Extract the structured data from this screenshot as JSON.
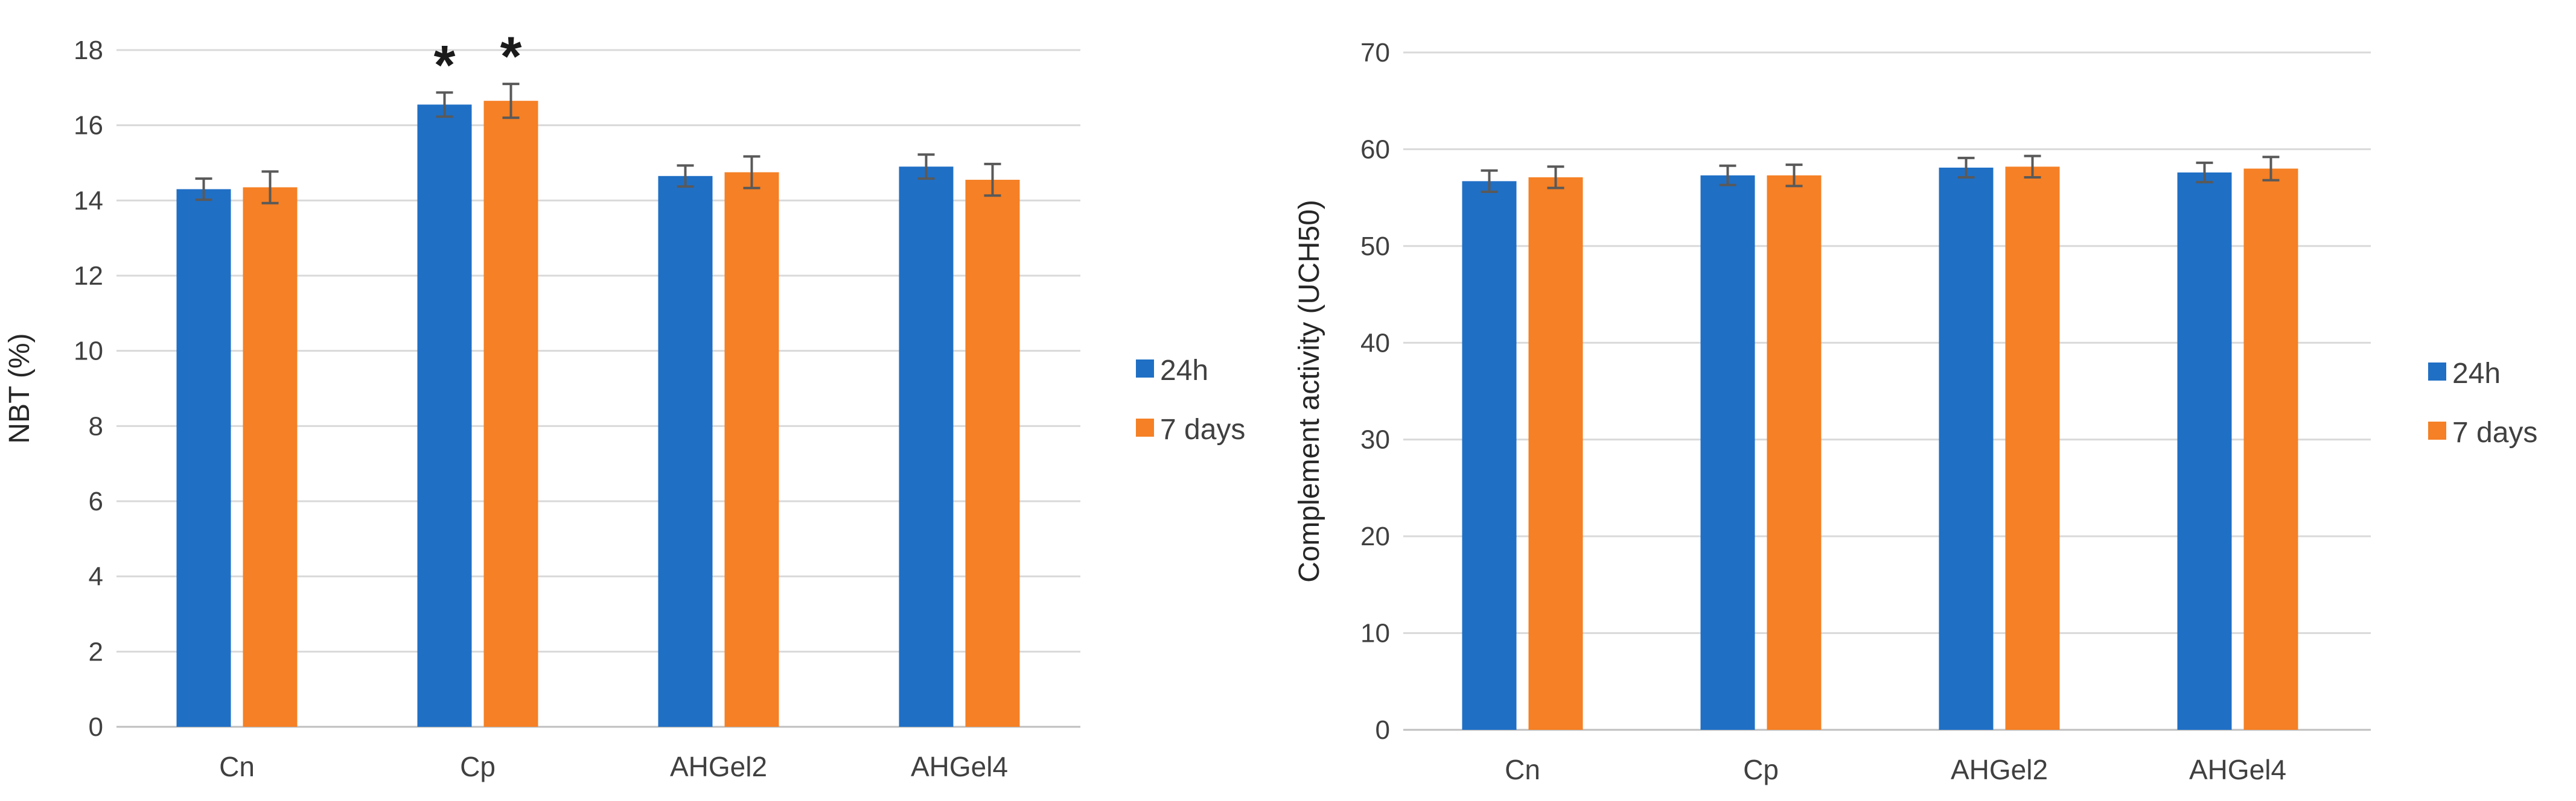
{
  "chart_data": [
    {
      "type": "bar",
      "title": "",
      "xlabel": "",
      "ylabel": "NBT (%)",
      "ylim": [
        0,
        18
      ],
      "yticks": [
        0,
        2,
        4,
        6,
        8,
        10,
        12,
        14,
        16,
        18
      ],
      "categories": [
        "Cn",
        "Cp",
        "AHGel2",
        "AHGel4"
      ],
      "series": [
        {
          "name": "24h",
          "color": "#1f6fc5",
          "values": [
            14.3,
            16.55,
            14.65,
            14.9
          ],
          "errors": [
            0.28,
            0.32,
            0.28,
            0.32
          ]
        },
        {
          "name": "7 days",
          "color": "#f58025",
          "values": [
            14.35,
            16.65,
            14.75,
            14.55
          ],
          "errors": [
            0.42,
            0.45,
            0.42,
            0.42
          ]
        }
      ],
      "annotations": [
        {
          "category": "Cp",
          "series": "24h",
          "text": "*"
        },
        {
          "category": "Cp",
          "series": "7 days",
          "text": "*"
        }
      ],
      "legend": "right",
      "grid": true
    },
    {
      "type": "bar",
      "title": "",
      "xlabel": "",
      "ylabel": "Complement activity (UCH50)",
      "ylim": [
        0,
        70
      ],
      "yticks": [
        0,
        10,
        20,
        30,
        40,
        50,
        60,
        70
      ],
      "categories": [
        "Cn",
        "Cp",
        "AHGel2",
        "AHGel4"
      ],
      "series": [
        {
          "name": "24h",
          "color": "#1f6fc5",
          "values": [
            56.7,
            57.3,
            58.1,
            57.6
          ],
          "errors": [
            1.1,
            1.0,
            1.0,
            1.0
          ]
        },
        {
          "name": "7 days",
          "color": "#f58025",
          "values": [
            57.1,
            57.3,
            58.2,
            58.0
          ],
          "errors": [
            1.1,
            1.1,
            1.1,
            1.2
          ]
        }
      ],
      "annotations": [],
      "legend": "right",
      "grid": true
    }
  ]
}
